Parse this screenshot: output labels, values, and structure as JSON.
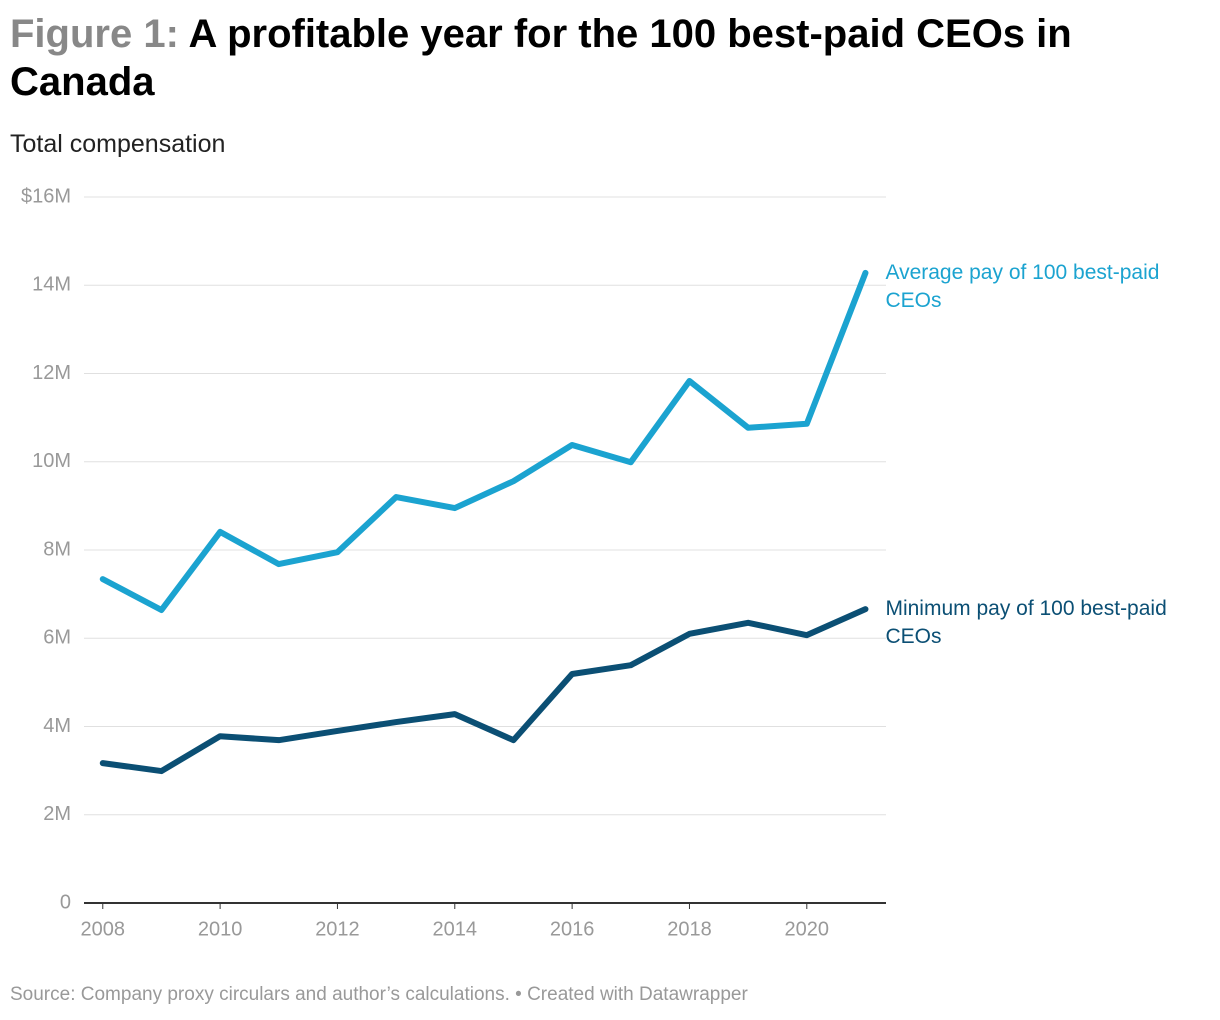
{
  "chart_data": {
    "type": "line",
    "figure_label": "Figure 1:",
    "title": "A profitable year for the 100 best-paid CEOs in Canada",
    "subtitle": "Total compensation",
    "x": [
      2008,
      2009,
      2010,
      2011,
      2012,
      2013,
      2014,
      2015,
      2016,
      2017,
      2018,
      2019,
      2020,
      2021
    ],
    "series": [
      {
        "name": "Average pay of 100 best-paid CEOs",
        "color": "#1ba3d0",
        "values": [
          7340000,
          6640000,
          8410000,
          7680000,
          7950000,
          9200000,
          8950000,
          9560000,
          10380000,
          9990000,
          11830000,
          10770000,
          10860000,
          14280000
        ]
      },
      {
        "name": "Minimum pay of 100 best-paid CEOs",
        "color": "#0b4f74",
        "values": [
          3170000,
          2990000,
          3780000,
          3690000,
          3900000,
          4100000,
          4280000,
          3690000,
          5190000,
          5390000,
          6100000,
          6350000,
          6070000,
          6660000
        ]
      }
    ],
    "xlim": [
      2007.68,
      2021.35
    ],
    "xticks": [
      2008,
      2010,
      2012,
      2014,
      2016,
      2018,
      2020
    ],
    "ylim": [
      0,
      16000000
    ],
    "yticks": [
      0,
      {
        "value": 2000000,
        "label": "2M"
      },
      {
        "value": 4000000,
        "label": "4M"
      },
      {
        "value": 6000000,
        "label": "6M"
      },
      {
        "value": 8000000,
        "label": "8M"
      },
      {
        "value": 10000000,
        "label": "10M"
      },
      {
        "value": 12000000,
        "label": "12M"
      },
      {
        "value": 14000000,
        "label": "14M"
      },
      {
        "value": 16000000,
        "label": "$16M"
      }
    ],
    "grid": true,
    "source": "Source: Company proxy circulars and author’s calculations. • Created with Datawrapper"
  }
}
